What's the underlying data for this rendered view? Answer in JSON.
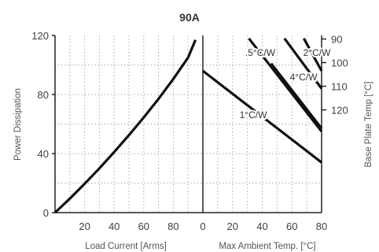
{
  "chart_data": {
    "type": "line",
    "title": "90A",
    "left_panel": {
      "xlabel": "Load Current  [Arms]",
      "ylabel": "Power Dissipation",
      "xlim": [
        0,
        100
      ],
      "ylim": [
        0,
        120
      ],
      "xticks": [
        20,
        40,
        60,
        80
      ],
      "yticks": [
        0,
        40,
        80,
        120
      ],
      "grid": true,
      "series": [
        {
          "x": [
            0,
            10,
            20,
            30,
            40,
            50,
            60,
            70,
            80,
            90,
            95
          ],
          "y": [
            0,
            9.5,
            19.5,
            30,
            41,
            52.5,
            64.5,
            77,
            90.5,
            105,
            117
          ]
        }
      ]
    },
    "right_panel": {
      "xlabel": "Max Ambient Temp. [°C]",
      "ylabel": "Base Plate Temp [°C]",
      "xlim": [
        0,
        80
      ],
      "xticks": [
        0,
        20,
        40,
        60,
        80
      ],
      "y2ticks": [
        90,
        100,
        110,
        120
      ],
      "grid": true,
      "series": [
        {
          "name": "1°C/W",
          "x": [
            0,
            80
          ],
          "y": [
            96,
            34
          ]
        },
        {
          "name": "4°C/W",
          "x": [
            46,
            80
          ],
          "y": [
            101,
            57
          ]
        },
        {
          "name": ".5°C/W",
          "x": [
            31,
            80
          ],
          "y": [
            118,
            55
          ]
        },
        {
          "name": "2°C/W",
          "x": [
            55,
            80
          ],
          "y": [
            118,
            84
          ]
        }
      ],
      "extra_segments": [
        {
          "x": [
            68,
            80
          ],
          "y": [
            118,
            96
          ]
        }
      ]
    }
  }
}
